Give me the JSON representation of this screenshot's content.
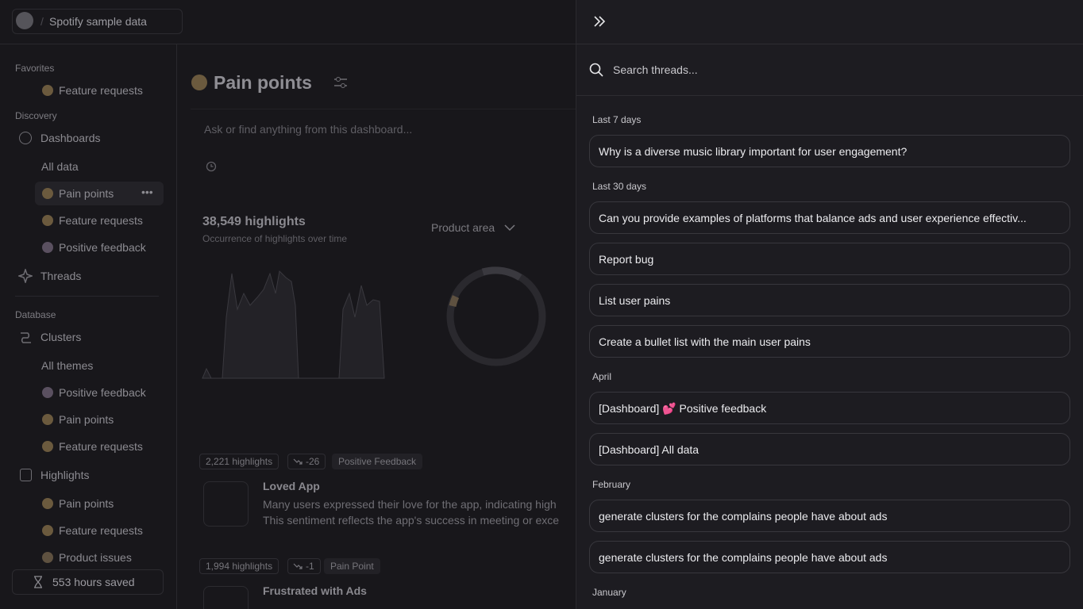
{
  "header": {
    "workspace": "Spotify sample data"
  },
  "sidebar": {
    "favorites": {
      "title": "Favorites",
      "items": [
        "Feature requests"
      ]
    },
    "discovery": {
      "title": "Discovery",
      "dashboards": {
        "label": "Dashboards",
        "items": [
          "All data",
          "Pain points",
          "Feature requests",
          "Positive feedback"
        ]
      },
      "threads": "Threads"
    },
    "database": {
      "title": "Database",
      "clusters": {
        "label": "Clusters",
        "items": [
          "All themes",
          "Positive feedback",
          "Pain points",
          "Feature requests"
        ]
      },
      "highlights": {
        "label": "Highlights",
        "items": [
          "Pain points",
          "Feature requests",
          "Product issues"
        ]
      }
    },
    "footer": "553 hours saved"
  },
  "dashboard": {
    "title": "Pain points",
    "ask_placeholder": "Ask or find anything from this dashboard...",
    "stat": "38,549 highlights",
    "stat_caption": "Occurrence of highlights over time",
    "filter": "Product area",
    "cards": [
      {
        "count": "2,221 highlights",
        "trend": "-26",
        "tag": "Positive Feedback",
        "title": "Loved App",
        "text": [
          "Many users expressed their love for the app, indicating high",
          "This sentiment reflects the app's success in meeting or exce"
        ]
      },
      {
        "count": "1,994 highlights",
        "trend": "-1",
        "tag": "Pain Point",
        "title": "Frustrated with Ads"
      }
    ]
  },
  "threads_panel": {
    "search_placeholder": "Search threads...",
    "groups": [
      {
        "title": "Last 7 days",
        "threads": [
          "Why is a diverse music library important for user engagement?"
        ]
      },
      {
        "title": "Last 30 days",
        "threads": [
          "Can you provide examples of platforms that balance ads and user experience effectiv...",
          "Report bug",
          "List user pains",
          "Create a bullet list with the main user pains"
        ]
      },
      {
        "title": "April",
        "threads": [
          "[Dashboard] 💕 Positive feedback",
          "[Dashboard] All data"
        ]
      },
      {
        "title": "February",
        "threads": [
          "generate clusters for the complains people have about ads",
          "generate clusters for the complains people have about ads"
        ]
      },
      {
        "title": "January",
        "threads": []
      }
    ]
  }
}
